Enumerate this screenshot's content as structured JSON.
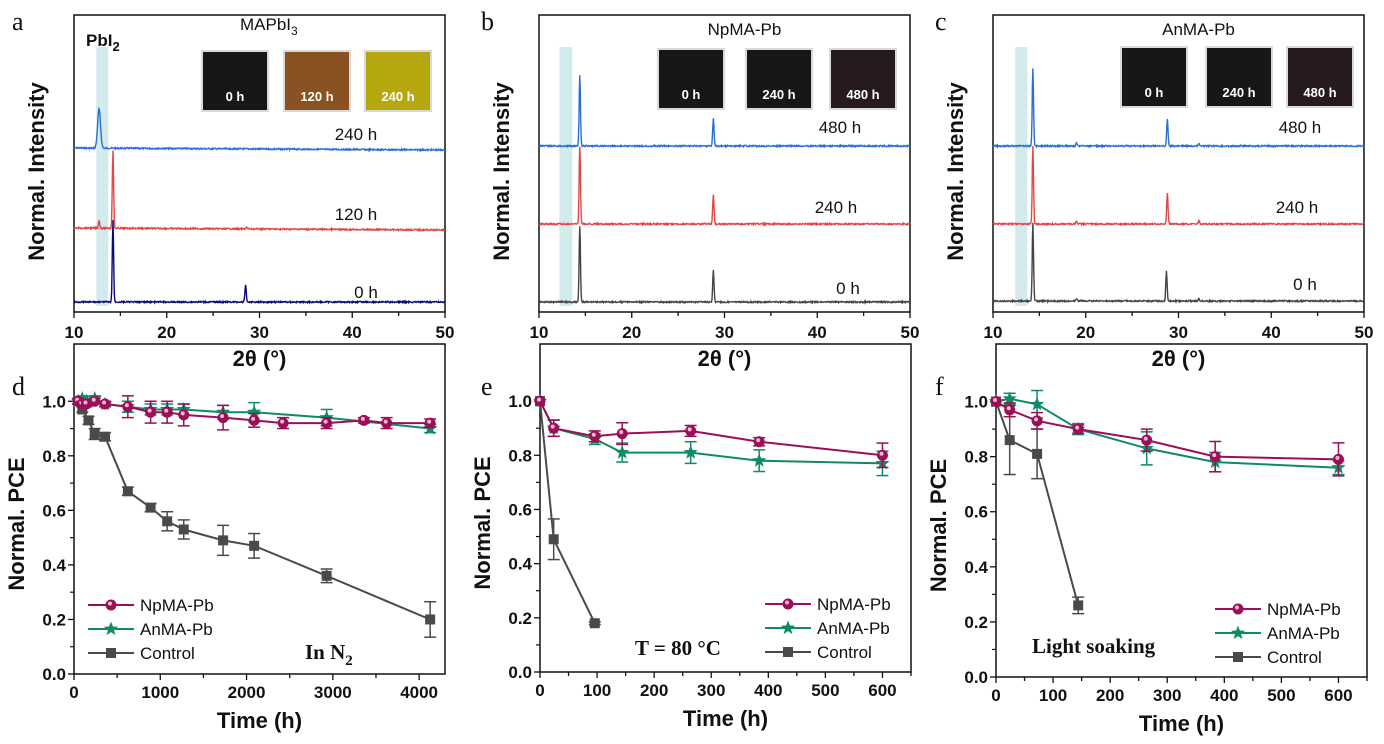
{
  "figure": {
    "panels": [
      "a",
      "b",
      "c",
      "d",
      "e",
      "f"
    ]
  },
  "colors": {
    "xrd_240_or_480": "#2a6fd1",
    "xrd_120_or_240": "#e04848",
    "xrd_0_mapbi3": "#0a0a78",
    "xrd_0_other": "#454545",
    "highlight_band": "#d3ebed",
    "npma": "#9b0f57",
    "anma": "#0f8a66",
    "control": "#4a4a4a",
    "photo_black": "#17171a",
    "photo_brown": "#8a5222",
    "photo_yellow": "#b5a70d",
    "photo_darkred": "#261a1c"
  },
  "chart_data": [
    {
      "panel": "a",
      "type": "line",
      "title": "MAPbI3",
      "title_main": "MAPbI",
      "title_sub": "3",
      "highlight_label_main": "PbI",
      "highlight_label_sub": "2",
      "highlight_range": [
        12.4,
        13.7
      ],
      "xlabel": "2θ (°)",
      "ylabel": "Normal. Intensity",
      "xlim": [
        10,
        50
      ],
      "xticks": [
        "10",
        "20",
        "30",
        "40",
        "50"
      ],
      "series": [
        {
          "name": "240 h",
          "color_key": "xrd_240_or_480",
          "peaks": [
            {
              "x": 12.7,
              "h": 0.92
            }
          ],
          "offset": 2.0
        },
        {
          "name": "120 h",
          "color_key": "xrd_120_or_240",
          "peaks": [
            {
              "x": 12.7,
              "h": 0.1
            },
            {
              "x": 14.2,
              "h": 1.0
            },
            {
              "x": 28.6,
              "h": 0.02
            }
          ],
          "offset": 1.0
        },
        {
          "name": "0 h",
          "color_key": "xrd_0_mapbi3",
          "peaks": [
            {
              "x": 14.2,
              "h": 1.05
            },
            {
              "x": 28.5,
              "h": 0.22
            }
          ],
          "offset": 0.0
        }
      ],
      "photos": [
        {
          "label": "0 h",
          "color_key": "photo_black"
        },
        {
          "label": "120 h",
          "color_key": "photo_brown"
        },
        {
          "label": "240 h",
          "color_key": "photo_yellow"
        }
      ]
    },
    {
      "panel": "b",
      "type": "line",
      "title": "NpMA-Pb",
      "highlight_range": [
        12.2,
        13.6
      ],
      "xlabel": "2θ (°)",
      "ylabel": "Normal. Intensity",
      "xlim": [
        10,
        50
      ],
      "xticks": [
        "10",
        "20",
        "30",
        "40",
        "50"
      ],
      "series": [
        {
          "name": "480 h",
          "color_key": "xrd_240_or_480",
          "peaks": [
            {
              "x": 14.4,
              "h": 0.9
            },
            {
              "x": 28.8,
              "h": 0.35
            }
          ],
          "offset": 2.0
        },
        {
          "name": "240 h",
          "color_key": "xrd_120_or_240",
          "peaks": [
            {
              "x": 14.4,
              "h": 1.0
            },
            {
              "x": 28.8,
              "h": 0.38
            }
          ],
          "offset": 1.0
        },
        {
          "name": "0 h",
          "color_key": "xrd_0_other",
          "peaks": [
            {
              "x": 14.4,
              "h": 0.97
            },
            {
              "x": 28.8,
              "h": 0.4
            }
          ],
          "offset": 0.0
        }
      ],
      "photos": [
        {
          "label": "0 h",
          "color_key": "photo_black"
        },
        {
          "label": "240 h",
          "color_key": "photo_black"
        },
        {
          "label": "480 h",
          "color_key": "photo_darkred"
        }
      ]
    },
    {
      "panel": "c",
      "type": "line",
      "title": "AnMA-Pb",
      "highlight_range": [
        12.4,
        13.7
      ],
      "xlabel": "2θ (°)",
      "ylabel": "Normal. Intensity",
      "xlim": [
        10,
        50
      ],
      "xticks": [
        "10",
        "20",
        "30",
        "40",
        "50"
      ],
      "series": [
        {
          "name": "480 h",
          "color_key": "xrd_240_or_480",
          "peaks": [
            {
              "x": 14.3,
              "h": 1.0
            },
            {
              "x": 19.0,
              "h": 0.04
            },
            {
              "x": 28.8,
              "h": 0.35
            },
            {
              "x": 32.2,
              "h": 0.03
            }
          ],
          "offset": 2.0
        },
        {
          "name": "240 h",
          "color_key": "xrd_120_or_240",
          "peaks": [
            {
              "x": 14.3,
              "h": 1.0
            },
            {
              "x": 19.0,
              "h": 0.03
            },
            {
              "x": 28.8,
              "h": 0.4
            },
            {
              "x": 32.2,
              "h": 0.04
            }
          ],
          "offset": 1.0
        },
        {
          "name": "0 h",
          "color_key": "xrd_0_other",
          "peaks": [
            {
              "x": 14.3,
              "h": 1.0
            },
            {
              "x": 19.0,
              "h": 0.03
            },
            {
              "x": 28.7,
              "h": 0.38
            },
            {
              "x": 32.2,
              "h": 0.03
            }
          ],
          "offset": 0.0
        }
      ],
      "photos": [
        {
          "label": "0 h",
          "color_key": "photo_black"
        },
        {
          "label": "240 h",
          "color_key": "photo_black"
        },
        {
          "label": "480 h",
          "color_key": "photo_darkred"
        }
      ]
    },
    {
      "panel": "d",
      "type": "line",
      "annotation_main": "In N",
      "annotation_sub": "2",
      "xlabel": "Time (h)",
      "ylabel": "Normal. PCE",
      "xlim": [
        0,
        4300
      ],
      "ylim": [
        0.0,
        1.1
      ],
      "xticks": [
        0,
        1000,
        2000,
        3000,
        4000
      ],
      "yticks": [
        "0.0",
        "0.2",
        "0.4",
        "0.6",
        "0.8",
        "1.0"
      ],
      "legend_position": "bottom-left",
      "series": [
        {
          "name": "NpMA-Pb",
          "color_key": "npma",
          "marker": "circle",
          "x": [
            48,
            96,
            144,
            240,
            360,
            624,
            888,
            1080,
            1272,
            1728,
            2088,
            2424,
            2928,
            3360,
            3624,
            4128
          ],
          "y": [
            1.0,
            0.99,
            0.99,
            1.0,
            0.99,
            0.98,
            0.96,
            0.96,
            0.95,
            0.94,
            0.93,
            0.92,
            0.92,
            0.93,
            0.92,
            0.92
          ],
          "err": [
            0.01,
            0.01,
            0.01,
            0.01,
            0.01,
            0.04,
            0.04,
            0.04,
            0.04,
            0.045,
            0.025,
            0.02,
            0.02,
            0.01,
            0.02,
            0.015
          ]
        },
        {
          "name": "AnMA-Pb",
          "color_key": "anma",
          "marker": "star",
          "x": [
            48,
            96,
            144,
            240,
            360,
            624,
            888,
            1080,
            1272,
            1728,
            2088,
            2928,
            4128
          ],
          "y": [
            1.0,
            1.01,
            1.0,
            1.01,
            0.99,
            0.98,
            0.97,
            0.97,
            0.97,
            0.96,
            0.96,
            0.94,
            0.9
          ],
          "err": [
            0.01,
            0.01,
            0.01,
            0.01,
            0.01,
            0.02,
            0.02,
            0.02,
            0.02,
            0.025,
            0.035,
            0.03,
            0.015
          ]
        },
        {
          "name": "Control",
          "color_key": "control",
          "marker": "square",
          "x": [
            48,
            96,
            168,
            240,
            360,
            624,
            888,
            1080,
            1272,
            1728,
            2088,
            2928,
            4128
          ],
          "y": [
            1.0,
            0.97,
            0.93,
            0.88,
            0.87,
            0.67,
            0.61,
            0.56,
            0.53,
            0.49,
            0.47,
            0.36,
            0.2
          ],
          "err": [
            0.01,
            0.01,
            0.015,
            0.02,
            0.015,
            0.015,
            0.015,
            0.035,
            0.035,
            0.055,
            0.045,
            0.025,
            0.065
          ]
        }
      ]
    },
    {
      "panel": "e",
      "type": "line",
      "annotation_main": "T = 80 °C",
      "xlabel": "Time (h)",
      "ylabel": "Normal. PCE",
      "xlim": [
        0,
        650
      ],
      "ylim": [
        0.0,
        1.1
      ],
      "xticks": [
        0,
        100,
        200,
        300,
        400,
        500,
        600
      ],
      "yticks": [
        "0.0",
        "0.2",
        "0.4",
        "0.6",
        "0.8",
        "1.0"
      ],
      "legend_position": "bottom-right",
      "series": [
        {
          "name": "NpMA-Pb",
          "color_key": "npma",
          "marker": "circle",
          "x": [
            0,
            24,
            96,
            144,
            264,
            384,
            600
          ],
          "y": [
            1.0,
            0.9,
            0.87,
            0.88,
            0.89,
            0.85,
            0.8
          ],
          "err": [
            0.0,
            0.03,
            0.02,
            0.04,
            0.02,
            0.015,
            0.045
          ]
        },
        {
          "name": "AnMA-Pb",
          "color_key": "anma",
          "marker": "star",
          "x": [
            0,
            24,
            96,
            144,
            264,
            384,
            600
          ],
          "y": [
            1.0,
            0.9,
            0.86,
            0.81,
            0.81,
            0.78,
            0.77
          ],
          "err": [
            0.0,
            0.03,
            0.02,
            0.035,
            0.04,
            0.04,
            0.045
          ]
        },
        {
          "name": "Control",
          "color_key": "control",
          "marker": "square",
          "x": [
            0,
            24,
            96
          ],
          "y": [
            1.0,
            0.49,
            0.18
          ],
          "err": [
            0.0,
            0.075,
            0.005
          ]
        }
      ]
    },
    {
      "panel": "f",
      "type": "line",
      "annotation_main": "Light soaking",
      "xlabel": "Time (h)",
      "ylabel": "Normal. PCE",
      "xlim": [
        0,
        650
      ],
      "ylim": [
        0.0,
        1.1
      ],
      "xticks": [
        0,
        100,
        200,
        300,
        400,
        500,
        600
      ],
      "yticks": [
        "0.0",
        "0.2",
        "0.4",
        "0.6",
        "0.8",
        "1.0"
      ],
      "legend_position": "bottom-right",
      "series": [
        {
          "name": "NpMA-Pb",
          "color_key": "npma",
          "marker": "circle",
          "x": [
            0,
            24,
            72,
            144,
            264,
            384,
            600
          ],
          "y": [
            1.0,
            0.97,
            0.93,
            0.9,
            0.86,
            0.8,
            0.79
          ],
          "err": [
            0.0,
            0.025,
            0.03,
            0.015,
            0.04,
            0.055,
            0.06
          ]
        },
        {
          "name": "AnMA-Pb",
          "color_key": "anma",
          "marker": "star",
          "x": [
            0,
            24,
            72,
            144,
            264,
            384,
            600
          ],
          "y": [
            1.0,
            1.01,
            0.99,
            0.9,
            0.83,
            0.78,
            0.76
          ],
          "err": [
            0.0,
            0.02,
            0.05,
            0.02,
            0.06,
            0.035,
            0.025
          ]
        },
        {
          "name": "Control",
          "color_key": "control",
          "marker": "square",
          "x": [
            0,
            24,
            72,
            144
          ],
          "y": [
            1.0,
            0.86,
            0.81,
            0.26
          ],
          "err": [
            0.0,
            0.125,
            0.09,
            0.03
          ]
        }
      ]
    }
  ]
}
